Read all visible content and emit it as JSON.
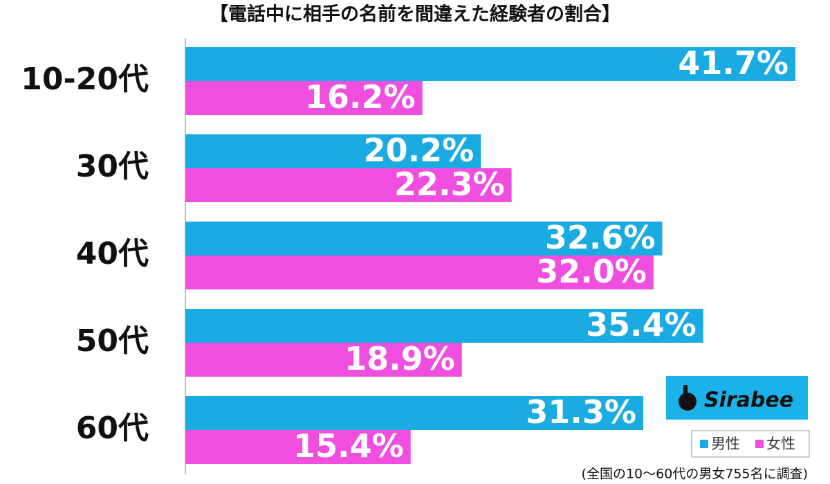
{
  "chart_data": {
    "type": "hbar",
    "title": "【電話中に相手の名前を間違えた経験者の割合】",
    "categories": [
      "10-20代",
      "30代",
      "40代",
      "50代",
      "60代"
    ],
    "series": [
      {
        "name": "男性",
        "color": "#1aabe2",
        "values": [
          41.7,
          20.2,
          32.6,
          35.4,
          31.3
        ],
        "value_labels": [
          "41.7%",
          "20.2%",
          "32.6%",
          "35.4%",
          "31.3%"
        ]
      },
      {
        "name": "女性",
        "color": "#f04ede",
        "values": [
          16.2,
          22.3,
          32.0,
          18.9,
          15.4
        ],
        "value_labels": [
          "16.2%",
          "22.3%",
          "32.0%",
          "18.9%",
          "15.4%"
        ]
      }
    ],
    "logo": "Sirabee",
    "note": "(全国の10～60代の男女755名に調査)"
  }
}
